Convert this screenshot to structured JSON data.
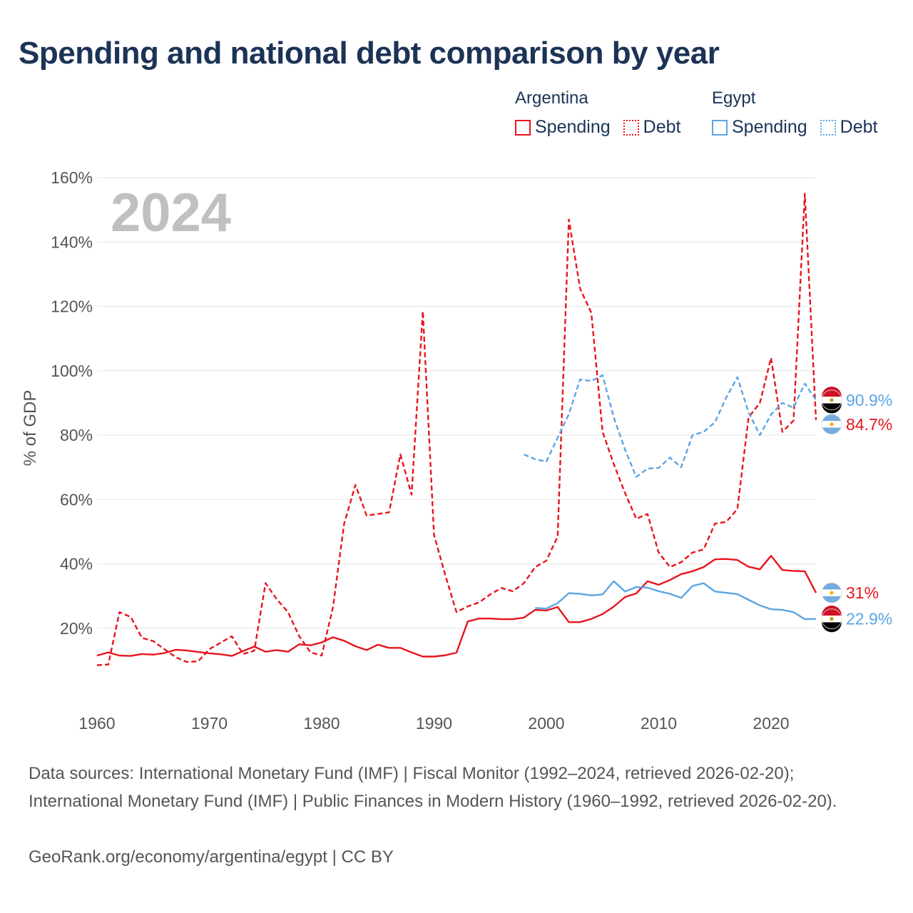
{
  "title": "Spending and national debt comparison by year",
  "year_watermark": "2024",
  "ylabel": "% of GDP",
  "legend": {
    "argentina": {
      "name": "Argentina",
      "spending": "Spending",
      "debt": "Debt"
    },
    "egypt": {
      "name": "Egypt",
      "spending": "Spending",
      "debt": "Debt"
    }
  },
  "colors": {
    "argentina": "#e8141d",
    "egypt": "#5ca5e4",
    "grid": "#e6e6e6",
    "axis_text": "#555555",
    "watermark": "#c0c0c0"
  },
  "footer": {
    "sources": "Data sources: International Monetary Fund (IMF) | Fiscal Monitor (1992–2024, retrieved 2026-02-20); International Monetary Fund (IMF) | Public Finances in Modern History (1960–1992, retrieved 2026-02-20).",
    "credit": "GeoRank.org/economy/argentina/egypt | CC BY"
  },
  "chart_data": {
    "type": "line",
    "title": "Spending and national debt comparison by year",
    "xlabel": "",
    "ylabel": "% of GDP",
    "xlim": [
      1960,
      2024
    ],
    "ylim": [
      0,
      160
    ],
    "x_ticks": [
      1960,
      1970,
      1980,
      1990,
      2000,
      2010,
      2020
    ],
    "y_ticks": [
      20,
      40,
      60,
      80,
      100,
      120,
      140,
      160
    ],
    "y_tick_labels": [
      "20%",
      "40%",
      "60%",
      "80%",
      "100%",
      "120%",
      "140%",
      "160%"
    ],
    "grid": true,
    "series": [
      {
        "name": "Argentina Spending",
        "country": "argentina",
        "style": "solid",
        "end_label": "31%",
        "x": [
          1960,
          1961,
          1962,
          1963,
          1964,
          1965,
          1966,
          1967,
          1968,
          1969,
          1970,
          1971,
          1972,
          1973,
          1974,
          1975,
          1976,
          1977,
          1978,
          1979,
          1980,
          1981,
          1982,
          1983,
          1984,
          1985,
          1986,
          1987,
          1988,
          1989,
          1990,
          1991,
          1992,
          1993,
          1994,
          1995,
          1996,
          1997,
          1998,
          1999,
          2000,
          2001,
          2002,
          2003,
          2004,
          2005,
          2006,
          2007,
          2008,
          2009,
          2010,
          2011,
          2012,
          2013,
          2014,
          2015,
          2016,
          2017,
          2018,
          2019,
          2020,
          2021,
          2022,
          2023,
          2024
        ],
        "y": [
          11.5,
          12.5,
          11.5,
          11.4,
          12.0,
          11.8,
          12.3,
          13.3,
          13.1,
          12.6,
          12.2,
          11.9,
          11.4,
          12.9,
          14.3,
          12.7,
          13.2,
          12.7,
          15.0,
          14.7,
          15.6,
          17.2,
          16.1,
          14.4,
          13.2,
          14.9,
          13.9,
          13.9,
          12.5,
          11.2,
          11.2,
          11.6,
          12.4,
          22.1,
          23.0,
          23.0,
          22.8,
          22.8,
          23.3,
          25.7,
          25.5,
          26.6,
          21.9,
          21.9,
          22.9,
          24.4,
          26.7,
          29.7,
          30.8,
          34.6,
          33.5,
          35.0,
          36.8,
          37.7,
          39.0,
          41.4,
          41.5,
          41.2,
          39.1,
          38.3,
          42.5,
          38.1,
          37.8,
          37.7,
          31.0
        ]
      },
      {
        "name": "Argentina Debt",
        "country": "argentina",
        "style": "dashed",
        "end_label": "84.7%",
        "x": [
          1960,
          1961,
          1962,
          1963,
          1964,
          1965,
          1966,
          1967,
          1968,
          1969,
          1970,
          1971,
          1972,
          1973,
          1974,
          1975,
          1976,
          1977,
          1978,
          1979,
          1980,
          1981,
          1982,
          1983,
          1984,
          1985,
          1986,
          1987,
          1988,
          1989,
          1990,
          1991,
          1992,
          1993,
          1994,
          1995,
          1996,
          1997,
          1998,
          1999,
          2000,
          2001,
          2002,
          2003,
          2004,
          2005,
          2006,
          2007,
          2008,
          2009,
          2010,
          2011,
          2012,
          2013,
          2014,
          2015,
          2016,
          2017,
          2018,
          2019,
          2020,
          2021,
          2022,
          2023,
          2024
        ],
        "y": [
          8.5,
          8.7,
          25.0,
          23.5,
          17.0,
          16.0,
          13.5,
          11.0,
          9.5,
          9.7,
          13.5,
          15.5,
          17.5,
          12.0,
          13.0,
          34.0,
          29.0,
          25.0,
          17.5,
          12.5,
          11.5,
          26.5,
          52.5,
          64.5,
          55.0,
          55.5,
          56.0,
          74.0,
          61.5,
          118.5,
          49.0,
          36.5,
          25.0,
          26.8,
          28.0,
          30.5,
          32.5,
          31.5,
          34.0,
          39.0,
          41.0,
          48.5,
          147.0,
          125.5,
          118.0,
          81.0,
          71.0,
          62.0,
          54.0,
          55.5,
          43.5,
          39.0,
          40.5,
          43.5,
          44.5,
          52.5,
          53.0,
          57.0,
          85.5,
          90.0,
          104.0,
          81.0,
          84.5,
          155.0,
          84.7
        ]
      },
      {
        "name": "Egypt Spending",
        "country": "egypt",
        "style": "solid",
        "end_label": "22.9%",
        "x": [
          1999,
          2000,
          2001,
          2002,
          2003,
          2004,
          2005,
          2006,
          2007,
          2008,
          2009,
          2010,
          2011,
          2012,
          2013,
          2014,
          2015,
          2016,
          2017,
          2018,
          2019,
          2020,
          2021,
          2022,
          2023,
          2024
        ],
        "y": [
          26.3,
          26.1,
          27.8,
          30.9,
          30.7,
          30.2,
          30.5,
          34.6,
          31.4,
          32.8,
          32.6,
          31.5,
          30.7,
          29.4,
          33.1,
          34.0,
          31.4,
          31.0,
          30.6,
          28.8,
          27.1,
          25.9,
          25.7,
          25.0,
          22.8,
          22.9
        ]
      },
      {
        "name": "Egypt Debt",
        "country": "egypt",
        "style": "dashed",
        "end_label": "90.9%",
        "x": [
          1998,
          1999,
          2000,
          2001,
          2002,
          2003,
          2004,
          2005,
          2006,
          2007,
          2008,
          2009,
          2010,
          2011,
          2012,
          2013,
          2014,
          2015,
          2016,
          2017,
          2018,
          2019,
          2020,
          2021,
          2022,
          2023,
          2024
        ],
        "y": [
          74.0,
          72.5,
          71.8,
          79.2,
          86.5,
          97.3,
          96.8,
          98.6,
          85.5,
          75.5,
          67.0,
          69.6,
          69.8,
          73.0,
          70.0,
          80.0,
          81.0,
          84.0,
          91.6,
          98.0,
          87.0,
          80.0,
          86.4,
          90.0,
          88.5,
          96.0,
          90.9
        ]
      }
    ]
  }
}
